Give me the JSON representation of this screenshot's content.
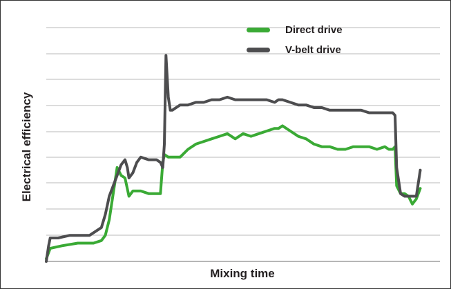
{
  "chart_data": {
    "type": "line",
    "xlabel": "Mixing time",
    "ylabel": "Electrical efficiency",
    "xlim": [
      0,
      100
    ],
    "ylim": [
      0,
      10
    ],
    "grid": true,
    "legend_position": "top-right",
    "series": [
      {
        "name": "Direct drive",
        "color": "#3aaa35",
        "x": [
          0,
          1,
          4,
          8,
          12,
          14,
          15,
          16,
          17,
          18,
          19,
          20,
          21,
          22,
          23,
          24,
          26,
          28,
          29,
          29.6,
          30,
          31,
          32,
          34,
          36,
          38,
          40,
          42,
          44,
          46,
          48,
          50,
          52,
          54,
          56,
          58,
          59,
          60,
          62,
          64,
          66,
          68,
          70,
          72,
          74,
          76,
          78,
          80,
          82,
          84,
          86,
          87,
          88,
          88.6,
          89,
          90,
          91,
          92,
          93,
          94,
          95
        ],
        "y": [
          0.1,
          0.5,
          0.6,
          0.7,
          0.7,
          0.8,
          1.0,
          1.6,
          2.6,
          3.6,
          3.3,
          3.2,
          2.5,
          2.7,
          2.7,
          2.7,
          2.6,
          2.6,
          2.6,
          3.8,
          4.1,
          4.0,
          4.0,
          4.0,
          4.3,
          4.5,
          4.6,
          4.7,
          4.8,
          4.9,
          4.7,
          4.9,
          4.8,
          4.9,
          5.0,
          5.1,
          5.1,
          5.2,
          5.0,
          4.8,
          4.7,
          4.5,
          4.4,
          4.4,
          4.3,
          4.3,
          4.4,
          4.4,
          4.4,
          4.3,
          4.4,
          4.3,
          4.3,
          4.4,
          2.9,
          2.6,
          2.6,
          2.5,
          2.2,
          2.4,
          2.8
        ]
      },
      {
        "name": "V-belt drive",
        "color": "#4d4d4f",
        "x": [
          0,
          0.6,
          1,
          3,
          6,
          9,
          11,
          12,
          14,
          15,
          16,
          17,
          18,
          19,
          20,
          20.6,
          21,
          22,
          23,
          24,
          26,
          28,
          29,
          29.3,
          29.6,
          30,
          30.4,
          31,
          31.5,
          32,
          34,
          36,
          38,
          40,
          42,
          44,
          46,
          48,
          50,
          52,
          54,
          56,
          58,
          59,
          60,
          62,
          64,
          66,
          68,
          70,
          72,
          74,
          76,
          78,
          80,
          82,
          84,
          86,
          87,
          88,
          88.6,
          89,
          90,
          91,
          92,
          93,
          94,
          95
        ],
        "y": [
          0.0,
          0.6,
          0.9,
          0.9,
          1.0,
          1.0,
          1.0,
          1.1,
          1.3,
          1.8,
          2.5,
          2.9,
          3.3,
          3.7,
          3.9,
          3.6,
          3.2,
          3.4,
          3.8,
          4.0,
          3.9,
          3.9,
          3.8,
          3.7,
          3.6,
          4.5,
          7.9,
          6.3,
          5.8,
          5.8,
          6.0,
          6.0,
          6.1,
          6.1,
          6.2,
          6.2,
          6.3,
          6.2,
          6.2,
          6.2,
          6.2,
          6.2,
          6.1,
          6.2,
          6.2,
          6.1,
          6.0,
          6.0,
          5.9,
          5.9,
          5.8,
          5.8,
          5.8,
          5.8,
          5.8,
          5.7,
          5.7,
          5.7,
          5.7,
          5.7,
          5.6,
          3.6,
          2.6,
          2.5,
          2.5,
          2.5,
          2.5,
          3.5
        ]
      }
    ]
  }
}
